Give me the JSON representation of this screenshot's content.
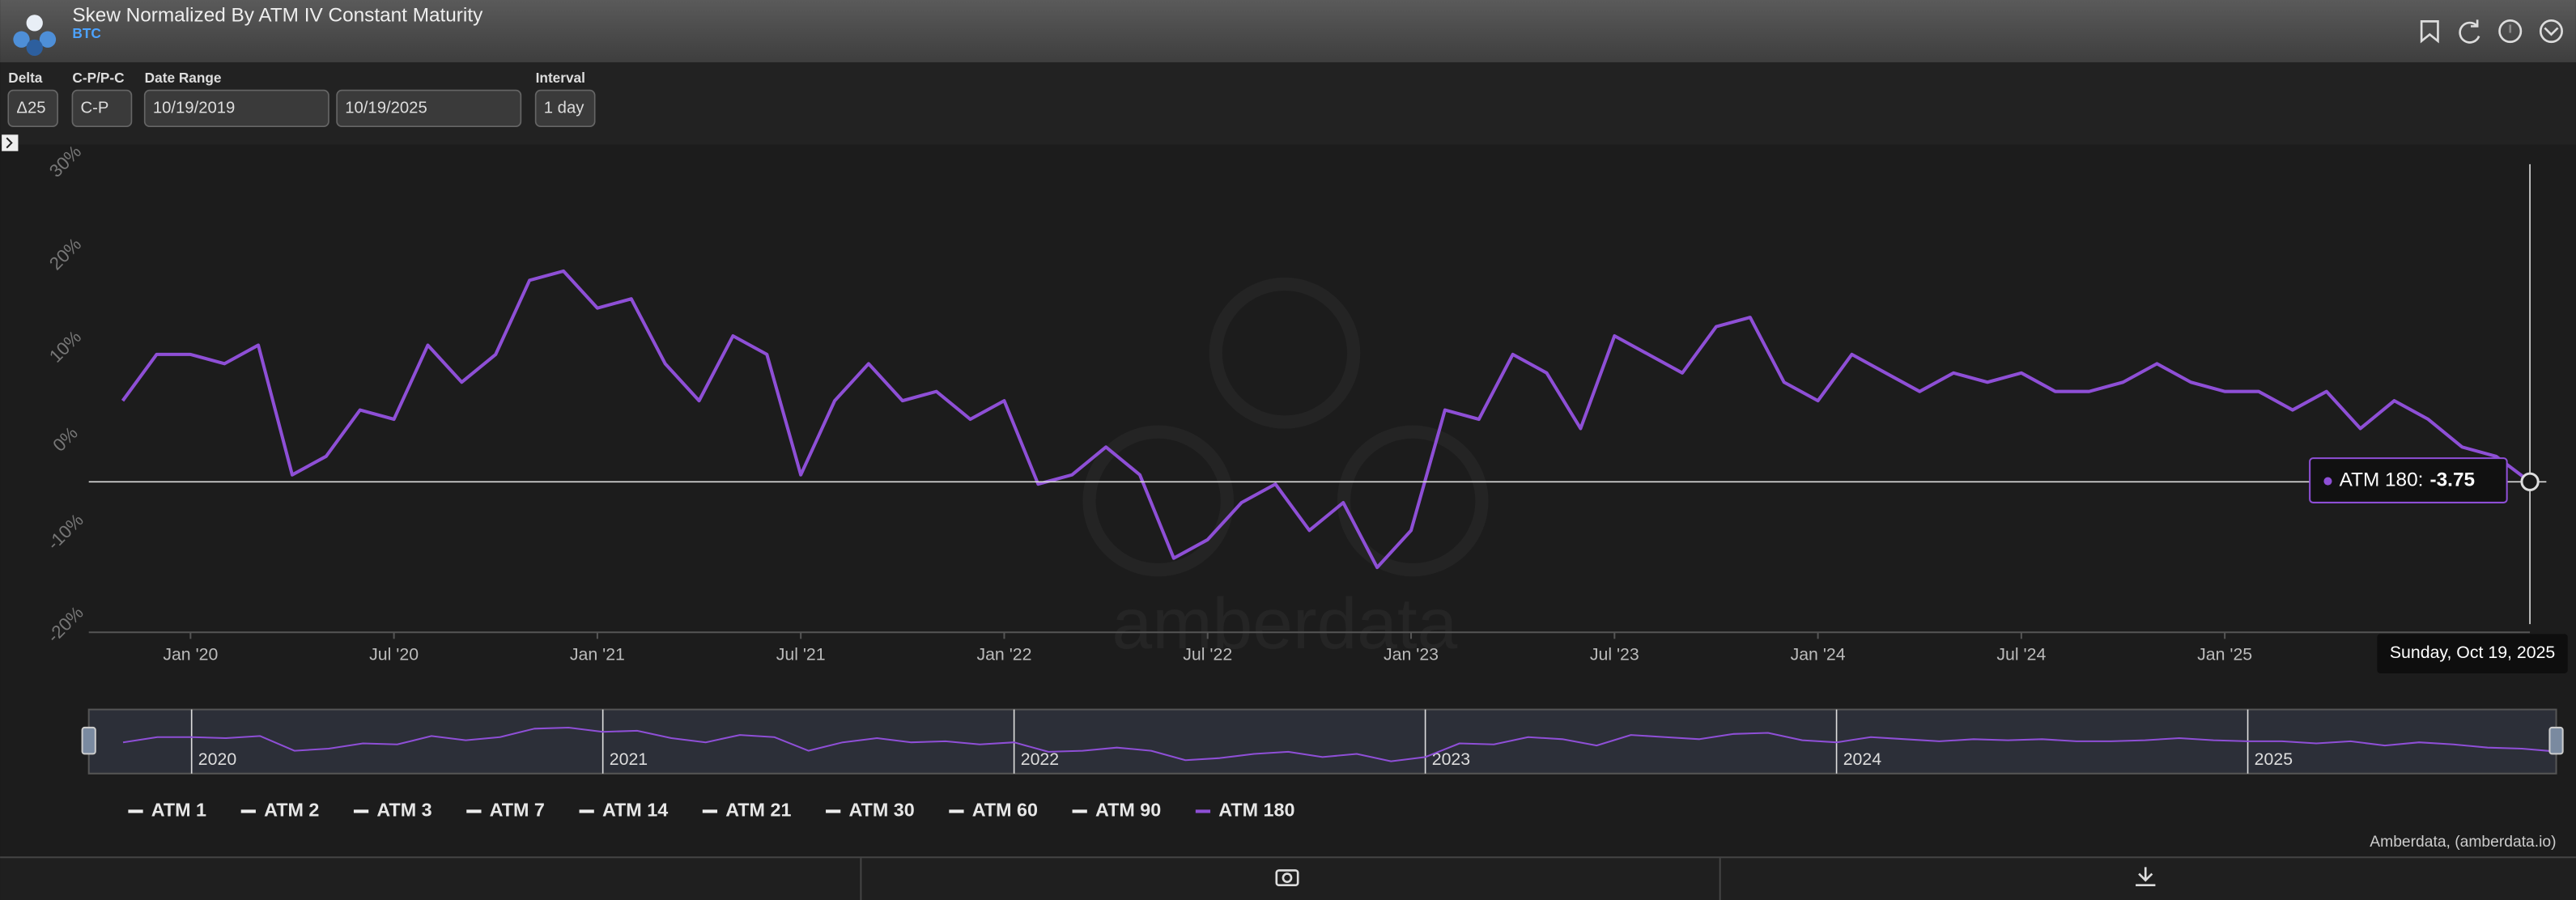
{
  "header": {
    "title": "Skew Normalized By ATM IV Constant Maturity",
    "subtitle": "BTC"
  },
  "controls": {
    "delta": {
      "label": "Delta",
      "value": "Δ25"
    },
    "cp": {
      "label": "C-P/P-C",
      "value": "C-P"
    },
    "date_range": {
      "label": "Date Range",
      "start": "10/19/2019",
      "end": "10/19/2025"
    },
    "interval": {
      "label": "Interval",
      "value": "1 day"
    }
  },
  "chart_data": {
    "type": "line",
    "watermark": "amberdata",
    "x": [
      "2019-11",
      "2019-12",
      "2020-01",
      "2020-02",
      "2020-03",
      "2020-04",
      "2020-05",
      "2020-06",
      "2020-07",
      "2020-08",
      "2020-09",
      "2020-10",
      "2020-11",
      "2020-12",
      "2021-01",
      "2021-02",
      "2021-03",
      "2021-04",
      "2021-05",
      "2021-06",
      "2021-07",
      "2021-08",
      "2021-09",
      "2021-10",
      "2021-11",
      "2021-12",
      "2022-01",
      "2022-02",
      "2022-03",
      "2022-04",
      "2022-05",
      "2022-06",
      "2022-07",
      "2022-08",
      "2022-09",
      "2022-10",
      "2022-11",
      "2022-12",
      "2023-01",
      "2023-02",
      "2023-03",
      "2023-04",
      "2023-05",
      "2023-06",
      "2023-07",
      "2023-08",
      "2023-09",
      "2023-10",
      "2023-11",
      "2023-12",
      "2024-01",
      "2024-02",
      "2024-03",
      "2024-04",
      "2024-05",
      "2024-06",
      "2024-07",
      "2024-08",
      "2024-09",
      "2024-10",
      "2024-11",
      "2024-12",
      "2025-01",
      "2025-02",
      "2025-03",
      "2025-04",
      "2025-05",
      "2025-06",
      "2025-07",
      "2025-08",
      "2025-09",
      "2025-10"
    ],
    "series": [
      {
        "name": "ATM 180",
        "color": "#8e4fd6",
        "values": [
          5,
          10,
          10,
          9,
          11,
          -3,
          -1,
          4,
          3,
          11,
          7,
          10,
          18,
          19,
          15,
          16,
          9,
          5,
          12,
          10,
          -3,
          5,
          9,
          5,
          6,
          3,
          5,
          -4,
          -3,
          0,
          -3,
          -12,
          -10,
          -6,
          -4,
          -9,
          -6,
          -13,
          -9,
          4,
          3,
          10,
          8,
          2,
          12,
          10,
          8,
          13,
          14,
          7,
          5,
          10,
          8,
          6,
          8,
          7,
          8,
          6,
          6,
          7,
          9,
          7,
          6,
          6,
          4,
          6,
          2,
          5,
          3,
          0,
          -1,
          -3.75
        ]
      }
    ],
    "inactive_legend": [
      "ATM 1",
      "ATM 2",
      "ATM 3",
      "ATM 7",
      "ATM 14",
      "ATM 21",
      "ATM 30",
      "ATM 60",
      "ATM 90"
    ],
    "xlim": [
      "2019-10",
      "2025-10"
    ],
    "xticks": [
      {
        "value": "2020-01",
        "label": "Jan '20"
      },
      {
        "value": "2020-07",
        "label": "Jul '20"
      },
      {
        "value": "2021-01",
        "label": "Jan '21"
      },
      {
        "value": "2021-07",
        "label": "Jul '21"
      },
      {
        "value": "2022-01",
        "label": "Jan '22"
      },
      {
        "value": "2022-07",
        "label": "Jul '22"
      },
      {
        "value": "2023-01",
        "label": "Jan '23"
      },
      {
        "value": "2023-07",
        "label": "Jul '23"
      },
      {
        "value": "2024-01",
        "label": "Jan '24"
      },
      {
        "value": "2024-07",
        "label": "Jul '24"
      },
      {
        "value": "2025-01",
        "label": "Jan '25"
      }
    ],
    "ylim": [
      -20,
      30
    ],
    "yticks": [
      {
        "value": -20,
        "label": "-20%"
      },
      {
        "value": -10,
        "label": "-10%"
      },
      {
        "value": 0,
        "label": "0%"
      },
      {
        "value": 10,
        "label": "10%"
      },
      {
        "value": 20,
        "label": "20%"
      },
      {
        "value": 30,
        "label": "30%"
      }
    ],
    "grid": false,
    "navigator_ticks": [
      {
        "value": "2020-01",
        "label": "2020"
      },
      {
        "value": "2021-01",
        "label": "2021"
      },
      {
        "value": "2022-01",
        "label": "2022"
      },
      {
        "value": "2023-01",
        "label": "2023"
      },
      {
        "value": "2024-01",
        "label": "2024"
      },
      {
        "value": "2025-01",
        "label": "2025"
      }
    ],
    "tooltip": {
      "label": "ATM 180:",
      "date": "Sunday, Oct 19, 2025"
    },
    "credits": "Amberdata, (amberdata.io)"
  }
}
